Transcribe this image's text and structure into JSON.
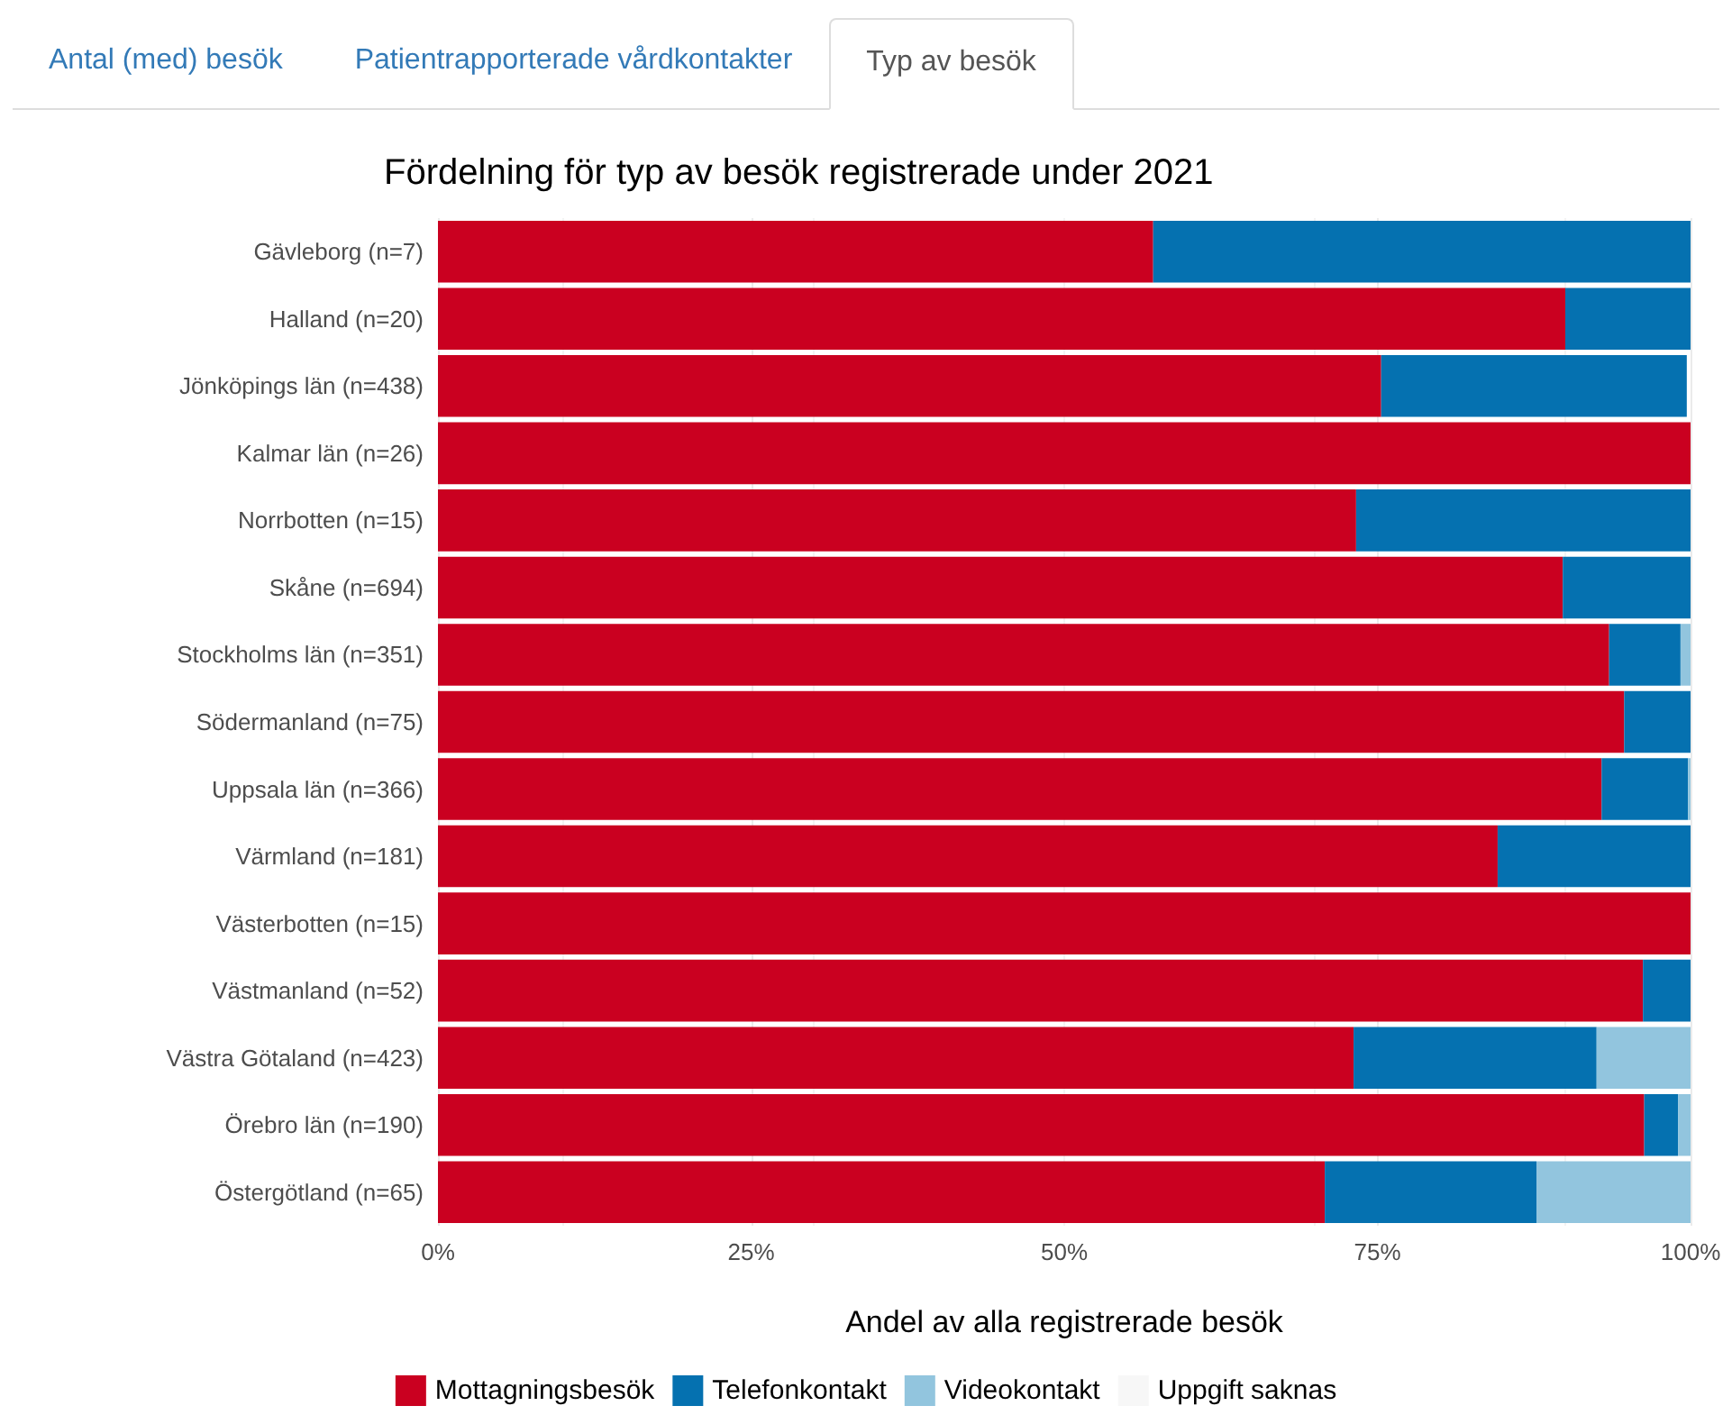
{
  "chart_data": {
    "type": "bar",
    "orientation": "horizontal",
    "stacked": true,
    "title": "Fördelning för typ av besök registrerade under 2021",
    "xlabel": "Andel av alla registrerade besök",
    "annotations": [
      "Antal (med) besök",
      "Patientrapporterade vårdkontakter",
      "Typ av besök"
    ],
    "categories": [
      "Gävleborg (n=7)",
      "Halland (n=20)",
      "Jönköpings län (n=438)",
      "Kalmar län (n=26)",
      "Norrbotten (n=15)",
      "Skåne (n=694)",
      "Stockholms län (n=351)",
      "Södermanland (n=75)",
      "Uppsala län (n=366)",
      "Värmland (n=181)",
      "Västerbotten (n=15)",
      "Västmanland (n=52)",
      "Västra Götaland (n=423)",
      "Örebro län (n=190)",
      "Östergötland (n=65)"
    ],
    "series": [
      {
        "name": "Mottagningsbesök",
        "color": "#ca0020",
        "values": [
          57.1,
          90,
          75.3,
          100,
          73.3,
          89.8,
          93.5,
          94.7,
          92.9,
          84.6,
          100,
          96.2,
          73.1,
          96.3,
          70.8
        ]
      },
      {
        "name": "Telefonkontakt",
        "color": "#0571b0",
        "values": [
          42.9,
          10,
          24.4,
          0,
          26.7,
          10.2,
          5.7,
          5.3,
          6.9,
          15.4,
          0,
          3.8,
          19.4,
          2.7,
          16.9
        ]
      },
      {
        "name": "Videokontakt",
        "color": "#92c5de",
        "values": [
          0,
          0,
          0,
          0,
          0,
          0,
          0.8,
          0,
          0.2,
          0,
          0,
          0,
          7.5,
          1.0,
          12.3
        ]
      },
      {
        "name": "Uppgift saknas",
        "color": "#f7f7f7",
        "values": [
          0,
          0,
          null,
          0,
          0,
          0,
          0,
          0,
          0,
          0,
          0,
          0,
          0,
          0,
          0
        ]
      }
    ],
    "xlim": [
      0,
      100
    ],
    "xticks": [
      {
        "value": 0,
        "label": "0%"
      },
      {
        "value": 25,
        "label": "25%"
      },
      {
        "value": 50,
        "label": "50%"
      },
      {
        "value": 75,
        "label": "75%"
      },
      {
        "value": 100,
        "label": "100%"
      }
    ],
    "grid": true,
    "legend": "bottom"
  }
}
